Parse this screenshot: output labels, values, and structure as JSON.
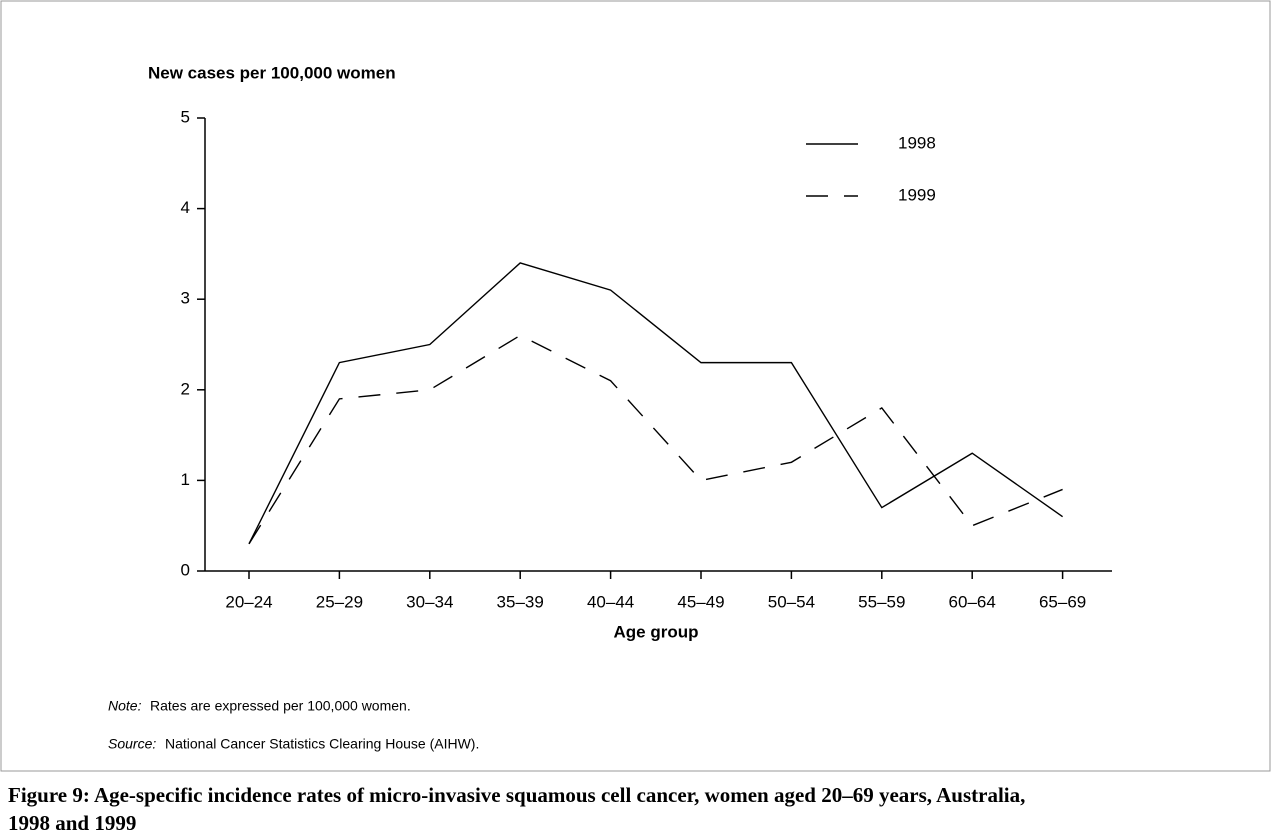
{
  "chart_data": {
    "type": "line",
    "y_label": "New cases per 100,000 women",
    "x_label": "Age group",
    "categories": [
      "20–24",
      "25–29",
      "30–34",
      "35–39",
      "40–44",
      "45–49",
      "50–54",
      "55–59",
      "60–64",
      "65–69"
    ],
    "series": [
      {
        "name": "1998",
        "color": "#000000",
        "line_style": "solid",
        "values": [
          0.3,
          2.3,
          2.5,
          3.4,
          3.1,
          2.3,
          2.3,
          0.7,
          1.3,
          0.6
        ]
      },
      {
        "name": "1999",
        "color": "#000000",
        "line_style": "dashed",
        "values": [
          0.3,
          1.9,
          2.0,
          2.6,
          2.1,
          1.0,
          1.2,
          1.8,
          0.5,
          0.9
        ]
      }
    ],
    "ylim": [
      0,
      5
    ],
    "yticks": [
      0,
      1,
      2,
      3,
      4,
      5
    ],
    "legend": "upper right",
    "grid": false
  },
  "note": {
    "label": "Note:",
    "text": "Rates are expressed per 100,000 women."
  },
  "source": {
    "label": "Source:",
    "text": "National Cancer Statistics Clearing House (AIHW)."
  },
  "caption": "Figure 9: Age-specific incidence rates of micro-invasive squamous cell cancer, women aged 20–69 years, Australia, 1998 and 1999"
}
